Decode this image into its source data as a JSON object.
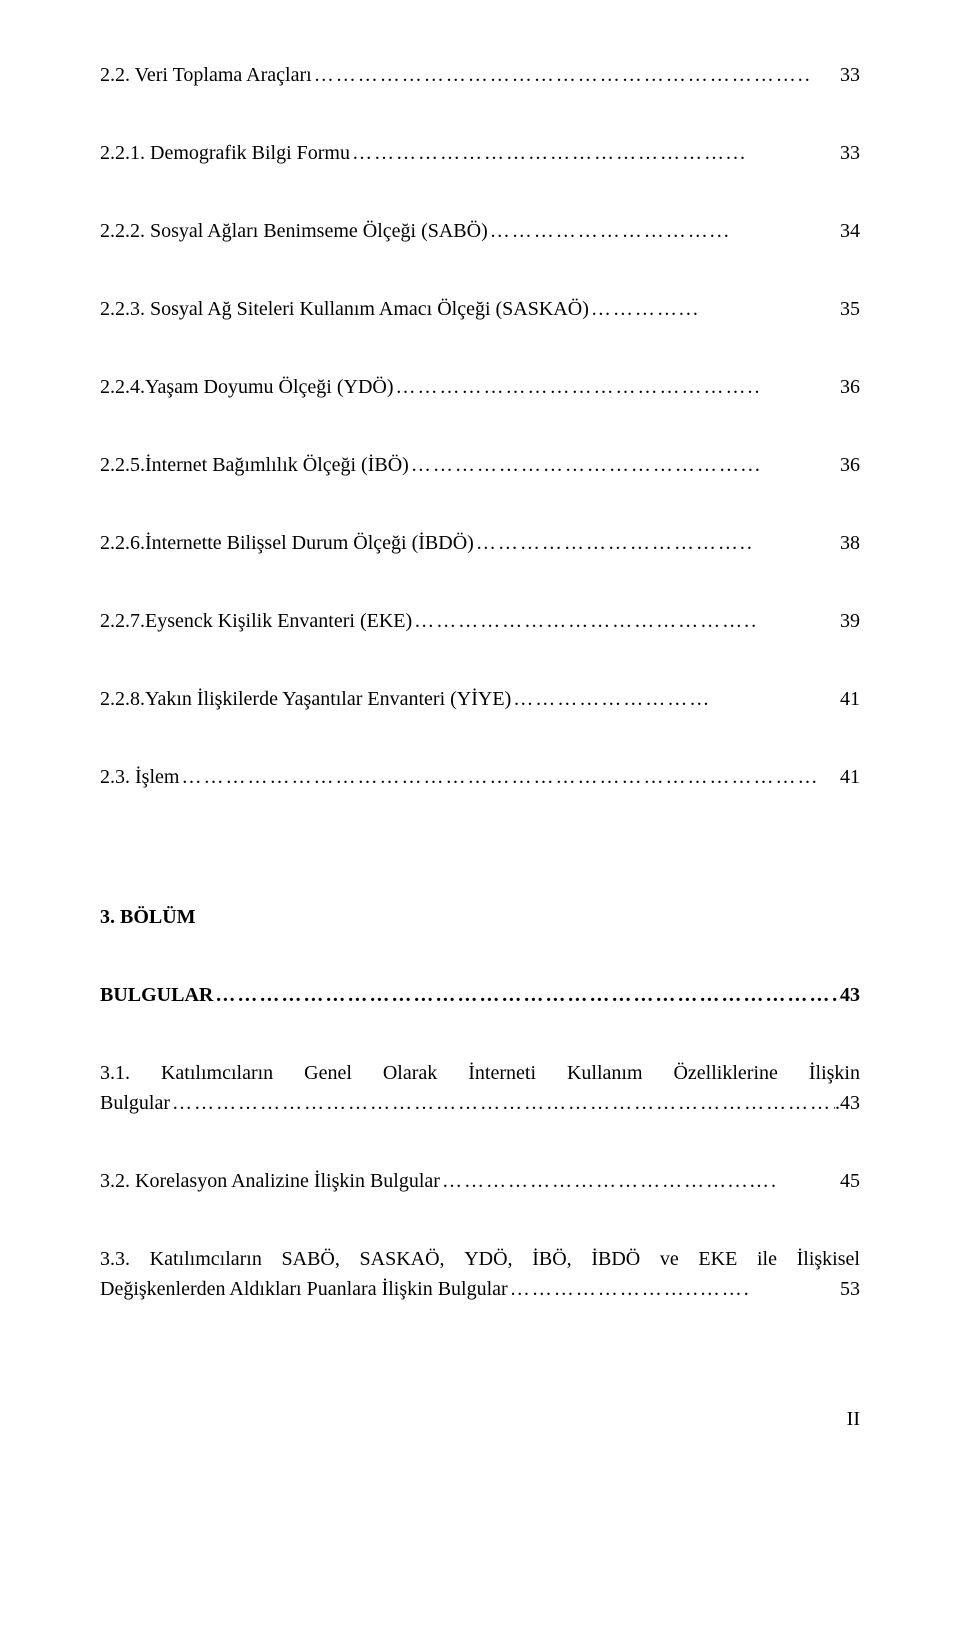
{
  "toc": [
    {
      "label": "2.2. Veri Toplama Araçları",
      "page": "33",
      "leader": "………………………………………………………….."
    },
    {
      "label": "2.2.1. Demografik Bilgi Formu",
      "page": "33",
      "leader": "……………………………………………..."
    },
    {
      "label": "2.2.2. Sosyal Ağları Benimseme Ölçeği (SABÖ)",
      "page": "34",
      "leader": "…………………………..."
    },
    {
      "label": "2.2.3. Sosyal Ağ Siteleri Kullanım Amacı Ölçeği (SASKAÖ)",
      "page": "35",
      "leader": "…………..."
    },
    {
      "label": "2.2.4.Yaşam Doyumu Ölçeği (YDÖ)",
      "page": "36",
      "leader": "………………………………………….."
    },
    {
      "label": "2.2.5.İnternet Bağımlılık Ölçeği (İBÖ)",
      "page": "36",
      "leader": "………………………………………..."
    },
    {
      "label": "2.2.6.İnternette Bilişsel Durum Ölçeği (İBDÖ)",
      "page": "38",
      "leader": "……………………………….."
    },
    {
      "label": "2.2.7.Eysenck Kişilik Envanteri (EKE)",
      "page": "39",
      "leader": "……………………………………….."
    },
    {
      "label": "2.2.8.Yakın İlişkilerde Yaşantılar Envanteri (YİYE)",
      "page": "41",
      "leader": "………………………"
    },
    {
      "label": "2.3. İşlem",
      "page": "41",
      "leader": "……………………………………………………………………………"
    }
  ],
  "chapter": {
    "title": "3. BÖLÜM"
  },
  "heading": {
    "label": "BULGULAR",
    "page": "43",
    "leader": "………………………………………………………………………………….."
  },
  "entry31": {
    "words": [
      "3.1.",
      "Katılımcıların",
      "Genel",
      "Olarak",
      "İnterneti",
      "Kullanım",
      "Özelliklerine",
      "İlişkin"
    ],
    "tail_label": "Bulgular",
    "tail_page": ".43",
    "tail_leader": "……………………………………………………………………………………….."
  },
  "entry32": {
    "label": "3.2. Korelasyon Analizine İlişkin Bulgular",
    "page": "45",
    "leader": "…………………………………...…."
  },
  "entry33": {
    "line1_words": [
      "3.3.",
      "Katılımcıların",
      "SABÖ,",
      "SASKAÖ,",
      "YDÖ,",
      "İBÖ,",
      "İBDÖ",
      "ve",
      "EKE",
      "ile",
      "İlişkisel"
    ],
    "tail_label": "Değişkenlerden Aldıkları Puanlara İlişkin Bulgular",
    "tail_page": "53",
    "tail_leader": "……………………..……."
  },
  "footer": {
    "page_number": "II"
  }
}
